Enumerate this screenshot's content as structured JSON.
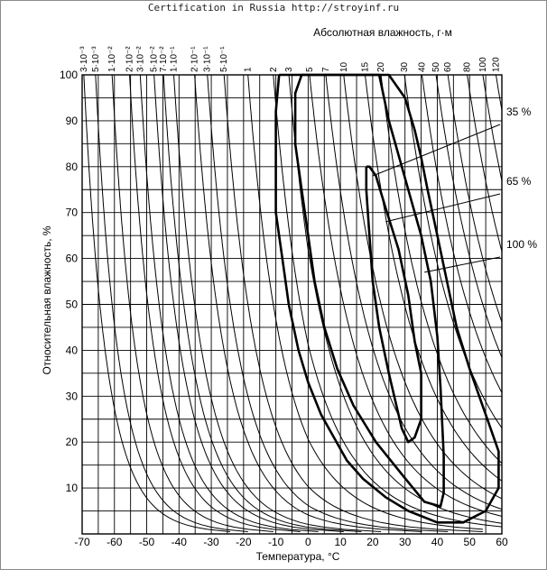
{
  "watermark": "Certification in Russia http://stroyinf.ru",
  "chart_data": {
    "type": "line",
    "xlabel": "Температура, °С",
    "ylabel": "Относительная влажность, %",
    "top_axis_label": "Абсолютная влажность, г·м",
    "xlim": [
      -70,
      60
    ],
    "ylim": [
      0,
      100
    ],
    "x_ticks": [
      -70,
      -60,
      -50,
      -40,
      -30,
      -20,
      -10,
      0,
      10,
      20,
      30,
      40,
      50,
      60
    ],
    "x_tick_labels": [
      "-70",
      "-60",
      "-50",
      "-40",
      "-30",
      "-20",
      "-10",
      "0",
      "10",
      "20",
      "30",
      "40",
      "50",
      "60"
    ],
    "y_ticks": [
      10,
      20,
      30,
      40,
      50,
      60,
      70,
      80,
      90,
      100
    ],
    "y_tick_labels": [
      "10",
      "20",
      "30",
      "40",
      "50",
      "60",
      "70",
      "80",
      "90",
      "100"
    ],
    "grid": true,
    "absolute_humidity_curves": [
      {
        "label": "3·10⁻³",
        "value": 0.003
      },
      {
        "label": "5·10⁻³",
        "value": 0.005
      },
      {
        "label": "1·10⁻²",
        "value": 0.01
      },
      {
        "label": "2·10⁻²",
        "value": 0.02
      },
      {
        "label": "3·10⁻²",
        "value": 0.03
      },
      {
        "label": "5·10⁻²",
        "value": 0.05
      },
      {
        "label": "7·10⁻²",
        "value": 0.07
      },
      {
        "label": "1·10⁻¹",
        "value": 0.1
      },
      {
        "label": "2·10⁻¹",
        "value": 0.2
      },
      {
        "label": "3·10⁻¹",
        "value": 0.3
      },
      {
        "label": "5·10⁻¹",
        "value": 0.5
      },
      {
        "label": "1",
        "value": 1
      },
      {
        "label": "2",
        "value": 2
      },
      {
        "label": "3",
        "value": 3
      },
      {
        "label": "5",
        "value": 5
      },
      {
        "label": "7",
        "value": 7
      },
      {
        "label": "10",
        "value": 10
      },
      {
        "label": "15",
        "value": 15
      },
      {
        "label": "20",
        "value": 20
      },
      {
        "label": "30",
        "value": 30
      },
      {
        "label": "40",
        "value": 40
      },
      {
        "label": "50",
        "value": 50
      },
      {
        "label": "60",
        "value": 60
      },
      {
        "label": "80",
        "value": 80
      },
      {
        "label": "100",
        "value": 100
      },
      {
        "label": "120",
        "value": 120
      }
    ],
    "series": [
      {
        "name": "100 %",
        "points": [
          [
            -9,
            100
          ],
          [
            -10,
            92
          ],
          [
            -10,
            80
          ],
          [
            -10,
            70
          ],
          [
            -8,
            60
          ],
          [
            -6,
            50
          ],
          [
            -3,
            40
          ],
          [
            0,
            33
          ],
          [
            4,
            26
          ],
          [
            8,
            21
          ],
          [
            12,
            16
          ],
          [
            17,
            12
          ],
          [
            24,
            8
          ],
          [
            31,
            5
          ],
          [
            40,
            2.5
          ],
          [
            48,
            2.5
          ],
          [
            55,
            5
          ],
          [
            59,
            10
          ],
          [
            59,
            18
          ],
          [
            55,
            26
          ],
          [
            50,
            36
          ],
          [
            46,
            45
          ],
          [
            43,
            55
          ],
          [
            40,
            65
          ],
          [
            37,
            75
          ],
          [
            35,
            82
          ],
          [
            33,
            88
          ],
          [
            30,
            95
          ],
          [
            25,
            100
          ],
          [
            -3,
            100
          ],
          [
            -9,
            100
          ]
        ]
      },
      {
        "name": "65 %",
        "points": [
          [
            -2,
            100
          ],
          [
            -4,
            96
          ],
          [
            -4,
            85
          ],
          [
            -2,
            75
          ],
          [
            0,
            65
          ],
          [
            2,
            55
          ],
          [
            5,
            45
          ],
          [
            9,
            36
          ],
          [
            14,
            28
          ],
          [
            21,
            20
          ],
          [
            29,
            13
          ],
          [
            36,
            7
          ],
          [
            41,
            6
          ],
          [
            42,
            9
          ],
          [
            42,
            17
          ],
          [
            41,
            32
          ],
          [
            40,
            43
          ],
          [
            38,
            55
          ],
          [
            35,
            65
          ],
          [
            31,
            75
          ],
          [
            27,
            85
          ],
          [
            25,
            90
          ],
          [
            22,
            100
          ],
          [
            -2,
            100
          ]
        ]
      },
      {
        "name": "35 %",
        "points": [
          [
            18,
            80
          ],
          [
            18,
            75
          ],
          [
            19,
            65
          ],
          [
            20,
            55
          ],
          [
            22,
            45
          ],
          [
            25,
            35
          ],
          [
            29,
            23
          ],
          [
            31,
            20
          ],
          [
            33,
            21
          ],
          [
            35,
            25
          ],
          [
            35,
            35
          ],
          [
            33,
            42
          ],
          [
            31,
            52
          ],
          [
            28,
            62
          ],
          [
            24,
            71
          ],
          [
            21,
            78
          ],
          [
            19,
            80
          ],
          [
            18,
            80
          ]
        ]
      }
    ],
    "annotations": [
      {
        "text": "35 %",
        "target": [
          20,
          78
        ]
      },
      {
        "text": "65 %",
        "target": [
          24,
          68
        ]
      },
      {
        "text": "100 %",
        "target": [
          36,
          57
        ]
      }
    ]
  }
}
